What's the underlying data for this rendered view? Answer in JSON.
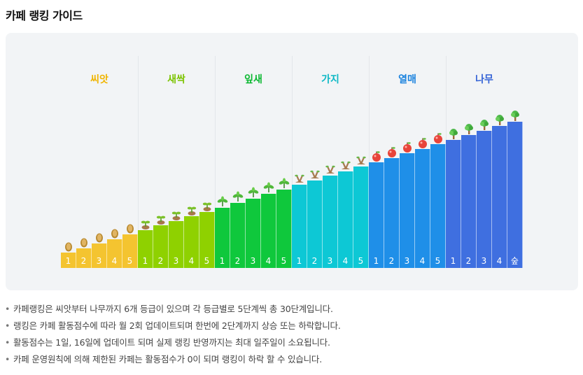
{
  "page_title": "카페 랭킹 가이드",
  "tiers": [
    {
      "name": "씨앗",
      "color": "#f4c430",
      "label_color": "#f0b400",
      "icon": "seed-icon",
      "steps": [
        "1",
        "2",
        "3",
        "4",
        "5"
      ]
    },
    {
      "name": "새싹",
      "color": "#8fd100",
      "label_color": "#7cc300",
      "icon": "sprout-icon",
      "steps": [
        "1",
        "2",
        "3",
        "4",
        "5"
      ]
    },
    {
      "name": "잎새",
      "color": "#0fc83c",
      "label_color": "#0cb832",
      "icon": "leaf-plant-icon",
      "steps": [
        "1",
        "2",
        "3",
        "4",
        "5"
      ]
    },
    {
      "name": "가지",
      "color": "#0dc8d5",
      "label_color": "#0cb8c5",
      "icon": "branch-icon",
      "steps": [
        "1",
        "2",
        "3",
        "4",
        "5"
      ]
    },
    {
      "name": "열매",
      "color": "#1f8fe8",
      "label_color": "#1a82de",
      "icon": "fruit-icon",
      "steps": [
        "1",
        "2",
        "3",
        "4",
        "5"
      ]
    },
    {
      "name": "나무",
      "color": "#3f6fe0",
      "label_color": "#3563d6",
      "icon": "tree-icon",
      "steps": [
        "1",
        "2",
        "3",
        "4",
        "숲"
      ]
    }
  ],
  "notes": [
    "카페랭킹은 씨앗부터 나무까지 6개 등급이 있으며 각 등급별로 5단계씩 총 30단계입니다.",
    "랭킹은 카페 활동점수에 따라 월 2회 업데이트되며 한번에 2단계까지 상승 또는 하락합니다.",
    "활동점수는 1일, 16일에 업데이트 되며 실제 랭킹 반영까지는 최대 일주일이 소요됩니다.",
    "카페 운영원칙에 의해 제한된 카페는 활동점수가 0이 되며 랭킹이 하락 할 수 있습니다."
  ],
  "bullet": "•"
}
